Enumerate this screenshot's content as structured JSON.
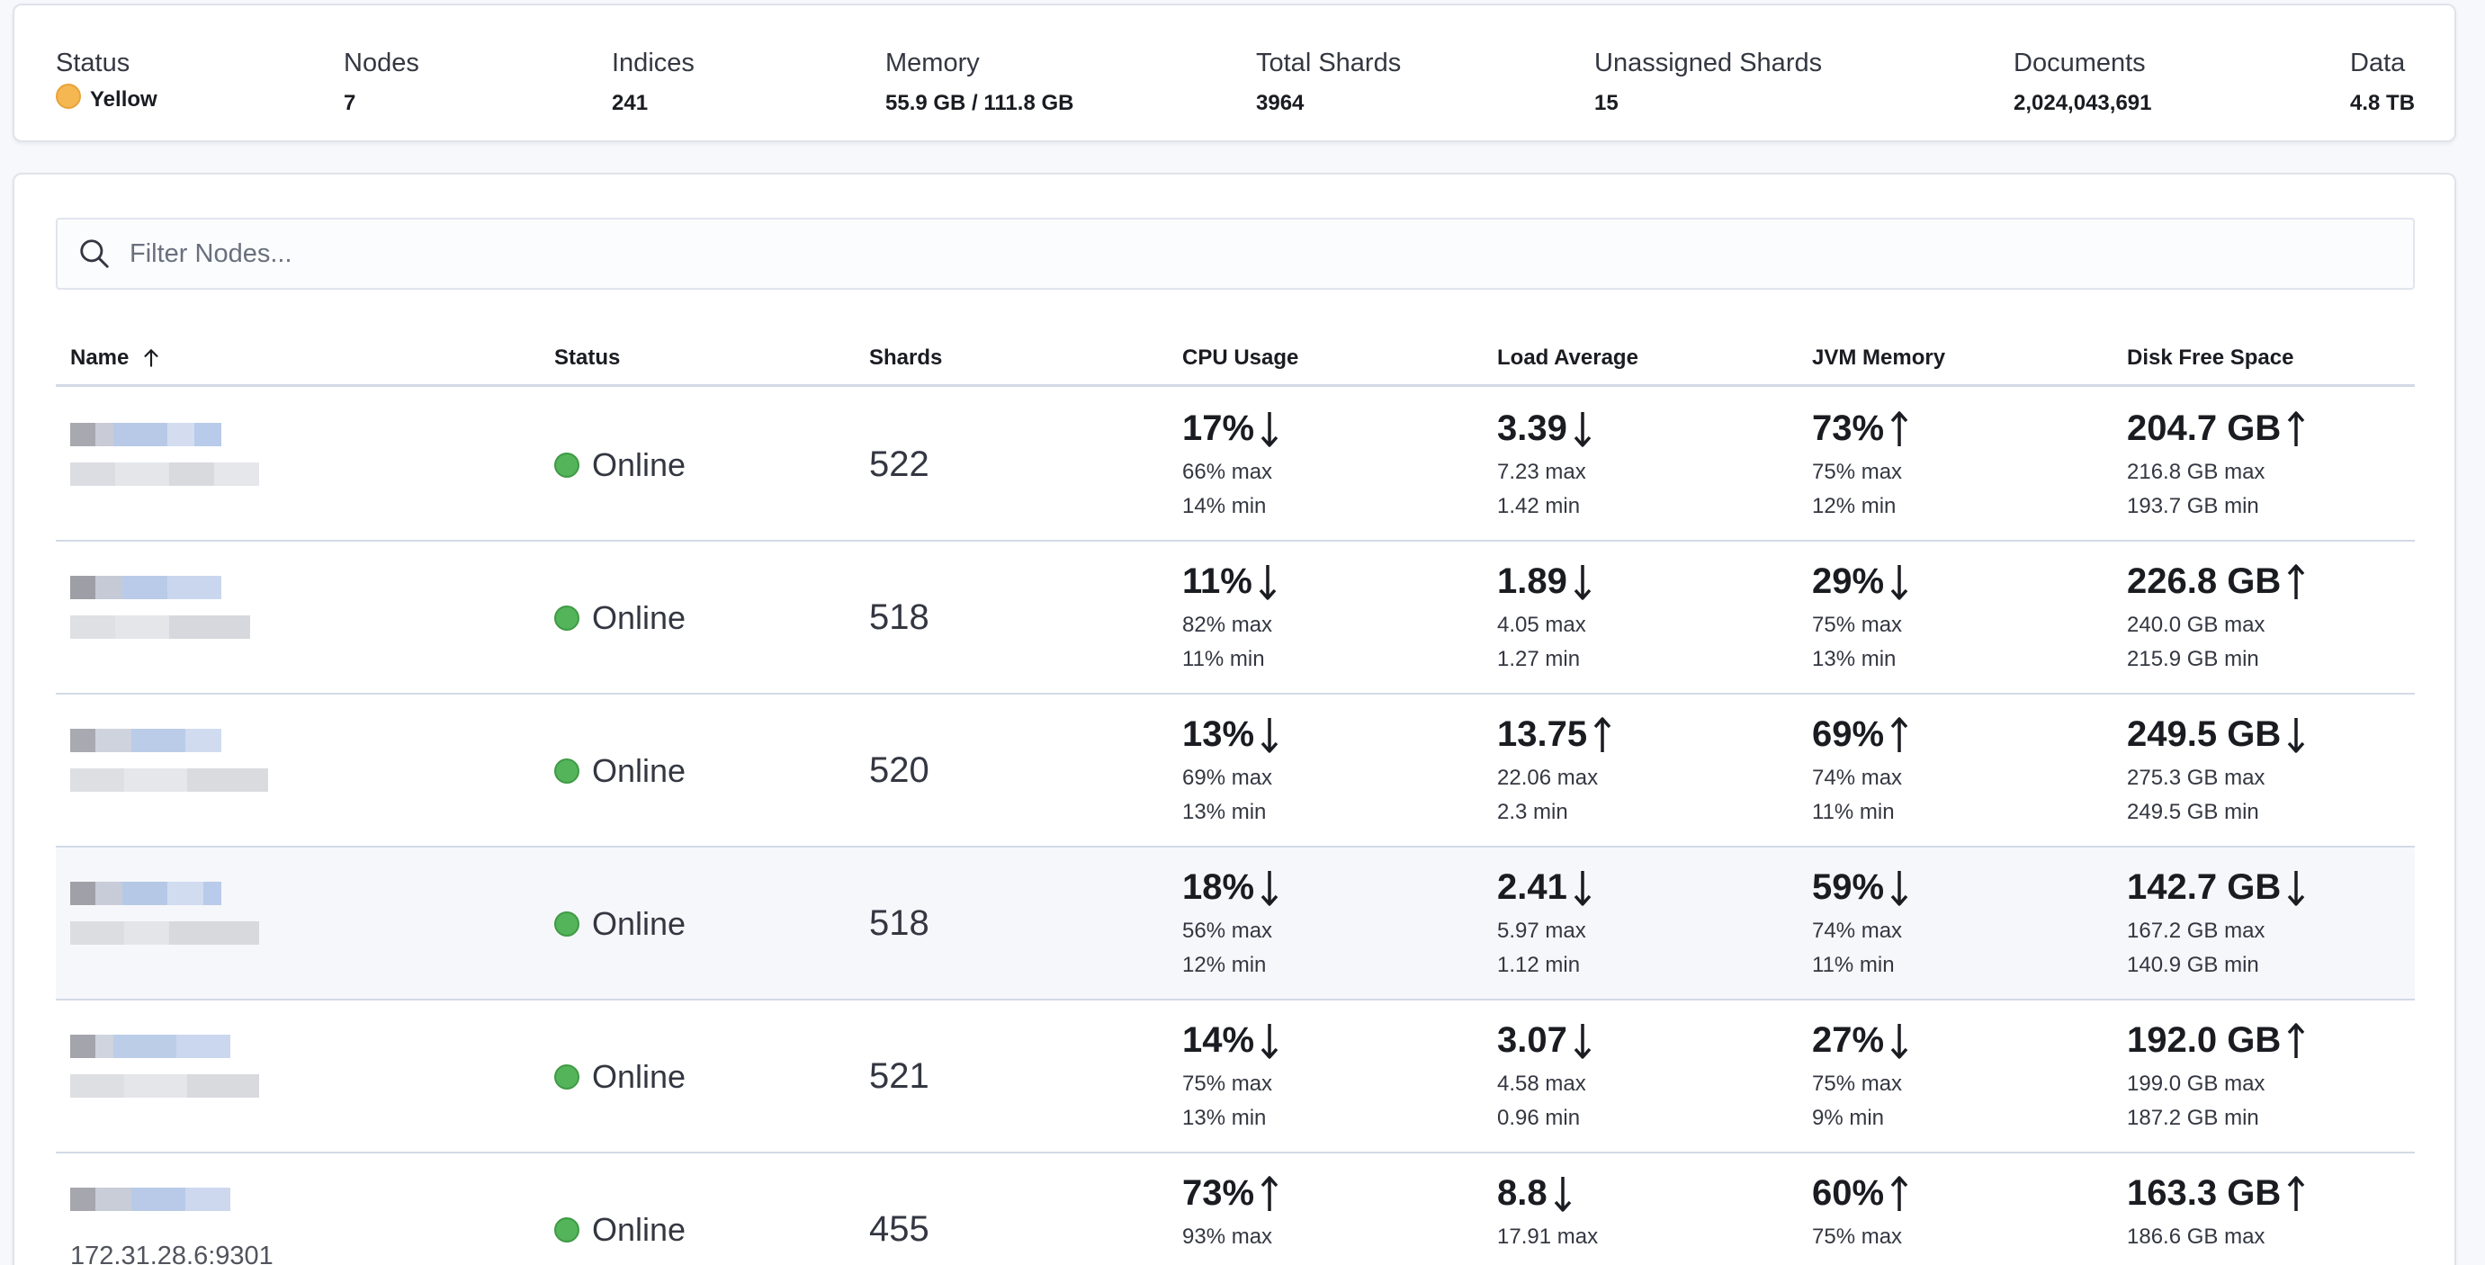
{
  "summary": {
    "status": {
      "label": "Status",
      "value": "Yellow"
    },
    "nodes": {
      "label": "Nodes",
      "value": "7"
    },
    "indices": {
      "label": "Indices",
      "value": "241"
    },
    "memory": {
      "label": "Memory",
      "value": "55.9 GB / 111.8 GB"
    },
    "total_shards": {
      "label": "Total Shards",
      "value": "3964"
    },
    "unassigned_shards": {
      "label": "Unassigned Shards",
      "value": "15"
    },
    "documents": {
      "label": "Documents",
      "value": "2,024,043,691"
    },
    "data": {
      "label": "Data",
      "value": "4.8 TB"
    }
  },
  "search": {
    "placeholder": "Filter Nodes..."
  },
  "table": {
    "columns": {
      "name": "Name",
      "status": "Status",
      "shards": "Shards",
      "cpu": "CPU Usage",
      "load": "Load Average",
      "jvm": "JVM Memory",
      "disk": "Disk Free Space"
    },
    "rows": [
      {
        "name": "",
        "status": "Online",
        "shards": "522",
        "cpu": {
          "value": "17%",
          "trend": "down",
          "max": "66% max",
          "min": "14% min"
        },
        "load": {
          "value": "3.39",
          "trend": "down",
          "max": "7.23 max",
          "min": "1.42 min"
        },
        "jvm": {
          "value": "73%",
          "trend": "up",
          "max": "75% max",
          "min": "12% min"
        },
        "disk": {
          "value": "204.7 GB",
          "trend": "up",
          "max": "216.8 GB max",
          "min": "193.7 GB min"
        }
      },
      {
        "name": "",
        "status": "Online",
        "shards": "518",
        "cpu": {
          "value": "11%",
          "trend": "down",
          "max": "82% max",
          "min": "11% min"
        },
        "load": {
          "value": "1.89",
          "trend": "down",
          "max": "4.05 max",
          "min": "1.27 min"
        },
        "jvm": {
          "value": "29%",
          "trend": "down",
          "max": "75% max",
          "min": "13% min"
        },
        "disk": {
          "value": "226.8 GB",
          "trend": "up",
          "max": "240.0 GB max",
          "min": "215.9 GB min"
        }
      },
      {
        "name": "",
        "status": "Online",
        "shards": "520",
        "cpu": {
          "value": "13%",
          "trend": "down",
          "max": "69% max",
          "min": "13% min"
        },
        "load": {
          "value": "13.75",
          "trend": "up",
          "max": "22.06 max",
          "min": "2.3 min"
        },
        "jvm": {
          "value": "69%",
          "trend": "up",
          "max": "74% max",
          "min": "11% min"
        },
        "disk": {
          "value": "249.5 GB",
          "trend": "down",
          "max": "275.3 GB max",
          "min": "249.5 GB min"
        }
      },
      {
        "name": "",
        "status": "Online",
        "shards": "518",
        "cpu": {
          "value": "18%",
          "trend": "down",
          "max": "56% max",
          "min": "12% min"
        },
        "load": {
          "value": "2.41",
          "trend": "down",
          "max": "5.97 max",
          "min": "1.12 min"
        },
        "jvm": {
          "value": "59%",
          "trend": "down",
          "max": "74% max",
          "min": "11% min"
        },
        "disk": {
          "value": "142.7 GB",
          "trend": "down",
          "max": "167.2 GB max",
          "min": "140.9 GB min"
        }
      },
      {
        "name": "",
        "status": "Online",
        "shards": "521",
        "cpu": {
          "value": "14%",
          "trend": "down",
          "max": "75% max",
          "min": "13% min"
        },
        "load": {
          "value": "3.07",
          "trend": "down",
          "max": "4.58 max",
          "min": "0.96 min"
        },
        "jvm": {
          "value": "27%",
          "trend": "down",
          "max": "75% max",
          "min": "9% min"
        },
        "disk": {
          "value": "192.0 GB",
          "trend": "up",
          "max": "199.0 GB max",
          "min": "187.2 GB min"
        }
      },
      {
        "name": "172.31.28.6:9301",
        "status": "Online",
        "shards": "455",
        "cpu": {
          "value": "73%",
          "trend": "up",
          "max": "93% max",
          "min": ""
        },
        "load": {
          "value": "8.8",
          "trend": "down",
          "max": "17.91 max",
          "min": ""
        },
        "jvm": {
          "value": "60%",
          "trend": "up",
          "max": "75% max",
          "min": ""
        },
        "disk": {
          "value": "163.3 GB",
          "trend": "up",
          "max": "186.6 GB max",
          "min": ""
        }
      }
    ]
  },
  "colors": {
    "status_yellow": "#f5b751",
    "status_green": "#54b45a"
  }
}
